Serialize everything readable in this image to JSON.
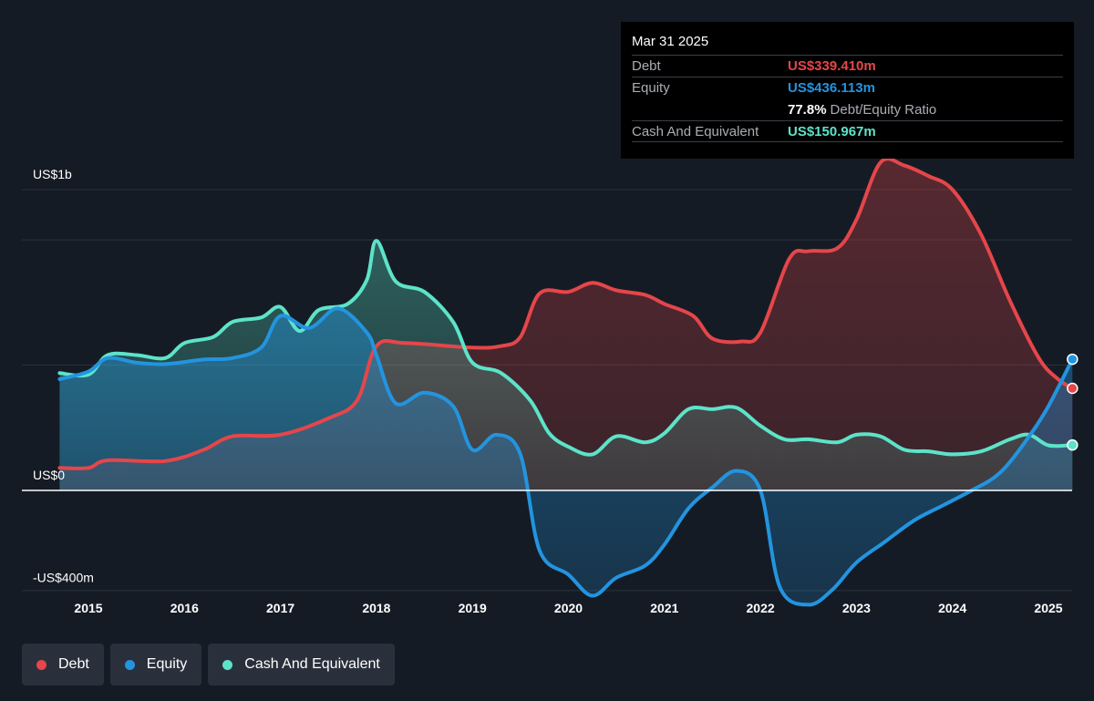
{
  "tooltip": {
    "date": "Mar 31 2025",
    "debt_label": "Debt",
    "debt_value": "US$339.410m",
    "equity_label": "Equity",
    "equity_value": "US$436.113m",
    "ratio_value": "77.8%",
    "ratio_label": "Debt/Equity Ratio",
    "cash_label": "Cash And Equivalent",
    "cash_value": "US$150.967m"
  },
  "legend": {
    "debt": "Debt",
    "equity": "Equity",
    "cash": "Cash And Equivalent"
  },
  "colors": {
    "debt": "#e5464a",
    "equity": "#2394df",
    "cash": "#5de3c9",
    "background": "#151b24"
  },
  "chart_data": {
    "type": "area",
    "y_tick_labels": [
      "US$1b",
      "US$0",
      "-US$400m"
    ],
    "x_tick_labels": [
      "2015",
      "2016",
      "2017",
      "2018",
      "2019",
      "2020",
      "2021",
      "2022",
      "2023",
      "2024",
      "2025"
    ],
    "ylim": [
      -400,
      1200
    ],
    "xlim": [
      2014.7,
      2025.25
    ],
    "series": [
      {
        "name": "Debt",
        "points": [
          [
            2014.7,
            75
          ],
          [
            2015.0,
            75
          ],
          [
            2015.2,
            100
          ],
          [
            2015.8,
            98
          ],
          [
            2016.2,
            135
          ],
          [
            2016.5,
            180
          ],
          [
            2017.0,
            185
          ],
          [
            2017.5,
            240
          ],
          [
            2017.8,
            300
          ],
          [
            2018.0,
            480
          ],
          [
            2018.3,
            490
          ],
          [
            2019.0,
            475
          ],
          [
            2019.3,
            480
          ],
          [
            2019.5,
            510
          ],
          [
            2019.7,
            655
          ],
          [
            2020.0,
            660
          ],
          [
            2020.25,
            690
          ],
          [
            2020.5,
            665
          ],
          [
            2020.8,
            650
          ],
          [
            2021.0,
            620
          ],
          [
            2021.3,
            580
          ],
          [
            2021.5,
            505
          ],
          [
            2021.8,
            495
          ],
          [
            2022.0,
            525
          ],
          [
            2022.3,
            770
          ],
          [
            2022.5,
            795
          ],
          [
            2022.8,
            805
          ],
          [
            2023.0,
            900
          ],
          [
            2023.25,
            1090
          ],
          [
            2023.5,
            1080
          ],
          [
            2023.75,
            1045
          ],
          [
            2024.0,
            1000
          ],
          [
            2024.3,
            850
          ],
          [
            2024.6,
            630
          ],
          [
            2024.9,
            440
          ],
          [
            2025.1,
            370
          ],
          [
            2025.25,
            339.41
          ]
        ]
      },
      {
        "name": "Equity",
        "points": [
          [
            2014.7,
            370
          ],
          [
            2015.0,
            395
          ],
          [
            2015.2,
            440
          ],
          [
            2015.5,
            425
          ],
          [
            2015.8,
            420
          ],
          [
            2016.2,
            435
          ],
          [
            2016.5,
            440
          ],
          [
            2016.8,
            475
          ],
          [
            2017.0,
            580
          ],
          [
            2017.3,
            540
          ],
          [
            2017.6,
            605
          ],
          [
            2017.9,
            525
          ],
          [
            2018.0,
            450
          ],
          [
            2018.2,
            290
          ],
          [
            2018.5,
            325
          ],
          [
            2018.8,
            280
          ],
          [
            2019.0,
            135
          ],
          [
            2019.25,
            185
          ],
          [
            2019.5,
            120
          ],
          [
            2019.7,
            -200
          ],
          [
            2020.0,
            -280
          ],
          [
            2020.25,
            -350
          ],
          [
            2020.5,
            -290
          ],
          [
            2020.8,
            -250
          ],
          [
            2021.0,
            -180
          ],
          [
            2021.25,
            -60
          ],
          [
            2021.5,
            10
          ],
          [
            2021.75,
            65
          ],
          [
            2022.0,
            0
          ],
          [
            2022.2,
            -320
          ],
          [
            2022.5,
            -380
          ],
          [
            2022.75,
            -330
          ],
          [
            2023.0,
            -240
          ],
          [
            2023.3,
            -170
          ],
          [
            2023.6,
            -100
          ],
          [
            2023.9,
            -50
          ],
          [
            2024.2,
            0
          ],
          [
            2024.5,
            60
          ],
          [
            2024.8,
            180
          ],
          [
            2025.0,
            280
          ],
          [
            2025.25,
            436.113
          ]
        ]
      },
      {
        "name": "Cash And Equivalent",
        "points": [
          [
            2014.7,
            390
          ],
          [
            2015.0,
            385
          ],
          [
            2015.2,
            450
          ],
          [
            2015.5,
            450
          ],
          [
            2015.8,
            440
          ],
          [
            2016.0,
            490
          ],
          [
            2016.3,
            510
          ],
          [
            2016.5,
            560
          ],
          [
            2016.8,
            575
          ],
          [
            2017.0,
            610
          ],
          [
            2017.2,
            530
          ],
          [
            2017.4,
            600
          ],
          [
            2017.7,
            620
          ],
          [
            2017.9,
            700
          ],
          [
            2018.0,
            830
          ],
          [
            2018.2,
            695
          ],
          [
            2018.5,
            660
          ],
          [
            2018.8,
            560
          ],
          [
            2019.0,
            425
          ],
          [
            2019.3,
            390
          ],
          [
            2019.6,
            300
          ],
          [
            2019.8,
            190
          ],
          [
            2020.0,
            145
          ],
          [
            2020.25,
            120
          ],
          [
            2020.5,
            180
          ],
          [
            2020.8,
            160
          ],
          [
            2021.0,
            190
          ],
          [
            2021.25,
            270
          ],
          [
            2021.5,
            270
          ],
          [
            2021.75,
            275
          ],
          [
            2022.0,
            215
          ],
          [
            2022.25,
            170
          ],
          [
            2022.5,
            170
          ],
          [
            2022.8,
            160
          ],
          [
            2023.0,
            185
          ],
          [
            2023.25,
            180
          ],
          [
            2023.5,
            135
          ],
          [
            2023.75,
            130
          ],
          [
            2024.0,
            120
          ],
          [
            2024.3,
            130
          ],
          [
            2024.6,
            170
          ],
          [
            2024.8,
            185
          ],
          [
            2025.0,
            150
          ],
          [
            2025.25,
            150.967
          ]
        ]
      }
    ]
  }
}
